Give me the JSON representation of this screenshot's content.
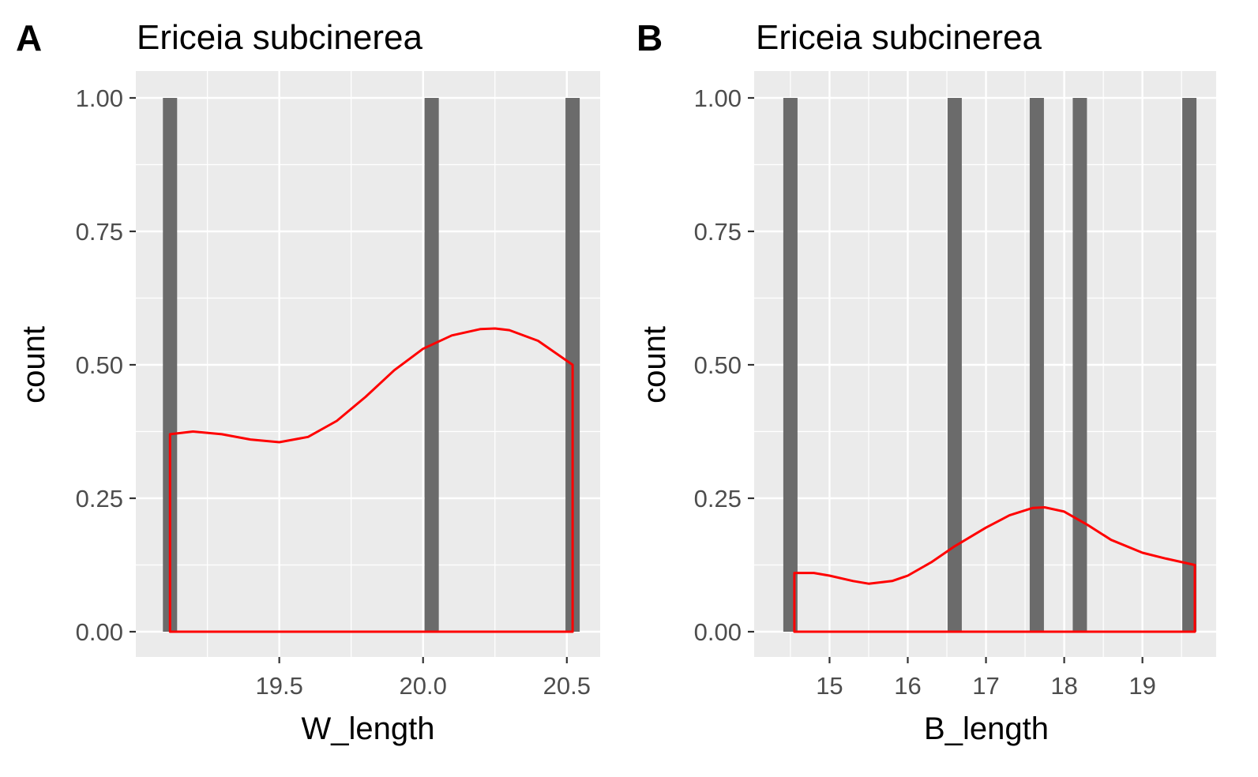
{
  "chart_data": [
    {
      "panel_tag": "A",
      "type": "bar",
      "title": "Ericeia subcinerea",
      "xlabel": "W_length",
      "ylabel": "count",
      "xlim": [
        19.1,
        20.55
      ],
      "ylim": [
        0,
        1
      ],
      "xticks": [
        19.5,
        20.0,
        20.5
      ],
      "xtick_labels": [
        "19.5",
        "20.0",
        "20.5"
      ],
      "yticks": [
        0,
        0.25,
        0.5,
        0.75,
        1
      ],
      "ytick_labels": [
        "0.00",
        "0.25",
        "0.50",
        "0.75",
        "1.00"
      ],
      "grid": true,
      "bars": [
        {
          "x": 19.12,
          "count": 1
        },
        {
          "x": 20.03,
          "count": 1
        },
        {
          "x": 20.52,
          "count": 1
        }
      ],
      "density_curve": {
        "x": [
          19.12,
          19.2,
          19.3,
          19.4,
          19.5,
          19.6,
          19.7,
          19.8,
          19.9,
          20.0,
          20.1,
          20.2,
          20.25,
          20.3,
          20.4,
          20.52
        ],
        "y": [
          0.37,
          0.375,
          0.37,
          0.36,
          0.355,
          0.365,
          0.395,
          0.44,
          0.49,
          0.53,
          0.555,
          0.567,
          0.568,
          0.565,
          0.545,
          0.5
        ]
      },
      "colors": {
        "bar": "#6b6b6b",
        "density": "#ff0000",
        "panel_bg": "#ebebeb",
        "grid": "#ffffff"
      }
    },
    {
      "panel_tag": "B",
      "type": "bar",
      "title": "Ericeia subcinerea",
      "xlabel": "B_length",
      "ylabel": "count",
      "xlim": [
        14.4,
        19.7
      ],
      "ylim": [
        0,
        1
      ],
      "xticks": [
        15,
        16,
        17,
        18,
        19
      ],
      "xtick_labels": [
        "15",
        "16",
        "17",
        "18",
        "19"
      ],
      "yticks": [
        0,
        0.25,
        0.5,
        0.75,
        1
      ],
      "ytick_labels": [
        "0.00",
        "0.25",
        "0.50",
        "0.75",
        "1.00"
      ],
      "grid": true,
      "bars": [
        {
          "x": 14.5,
          "count": 1
        },
        {
          "x": 16.6,
          "count": 1
        },
        {
          "x": 17.65,
          "count": 1
        },
        {
          "x": 18.2,
          "count": 1
        },
        {
          "x": 19.6,
          "count": 1
        }
      ],
      "density_curve": {
        "x": [
          14.55,
          14.8,
          15.0,
          15.3,
          15.5,
          15.8,
          16.0,
          16.3,
          16.6,
          17.0,
          17.3,
          17.6,
          17.75,
          18.0,
          18.3,
          18.6,
          19.0,
          19.3,
          19.67
        ],
        "y": [
          0.11,
          0.11,
          0.105,
          0.095,
          0.09,
          0.095,
          0.105,
          0.13,
          0.16,
          0.195,
          0.218,
          0.232,
          0.233,
          0.225,
          0.2,
          0.172,
          0.148,
          0.137,
          0.125
        ]
      },
      "colors": {
        "bar": "#6b6b6b",
        "density": "#ff0000",
        "panel_bg": "#ebebeb",
        "grid": "#ffffff"
      }
    }
  ]
}
